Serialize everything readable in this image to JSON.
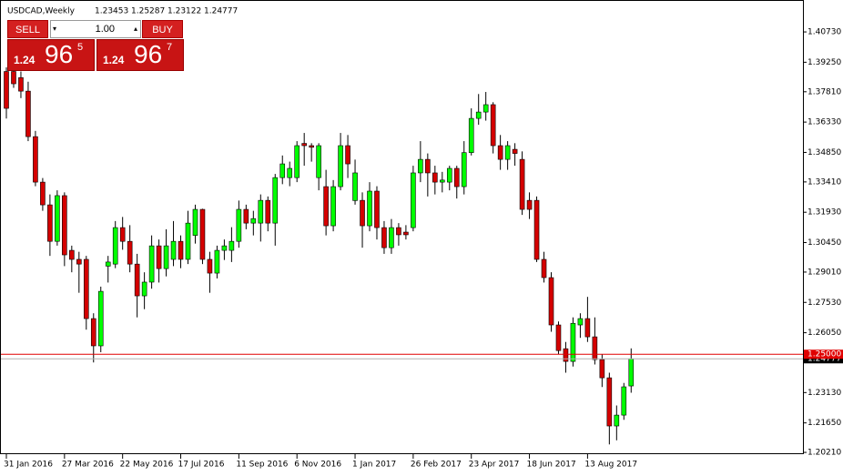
{
  "chart_data": {
    "type": "candlestick",
    "title": "USDCAD,Weekly",
    "categories": [
      "31 Jan 2016",
      null,
      null,
      null,
      null,
      null,
      null,
      null,
      "27 Mar 2016",
      null,
      null,
      null,
      null,
      null,
      null,
      null,
      "22 May 2016",
      null,
      null,
      null,
      null,
      null,
      null,
      null,
      "17 Jul 2016",
      null,
      null,
      null,
      null,
      null,
      null,
      null,
      "11 Sep 2016",
      null,
      null,
      null,
      null,
      null,
      null,
      null,
      "6 Nov 2016",
      null,
      null,
      null,
      null,
      null,
      null,
      null,
      "1 Jan 2017",
      null,
      null,
      null,
      null,
      null,
      null,
      null,
      "26 Feb 2017",
      null,
      null,
      null,
      null,
      null,
      null,
      null,
      "23 Apr 2017",
      null,
      null,
      null,
      null,
      null,
      null,
      null,
      "18 Jun 2017",
      null,
      null,
      null,
      null,
      null,
      null,
      null,
      "13 Aug 2017",
      null,
      null,
      null,
      null,
      null,
      null
    ],
    "open": [
      1.388,
      1.388,
      1.385,
      1.3784,
      1.3562,
      1.334,
      1.3229,
      1.3051,
      1.3274,
      1.3007,
      1.2963,
      1.2963,
      1.2674,
      1.2541,
      1.293,
      1.294,
      1.3118,
      1.3051,
      1.294,
      1.2785,
      1.2852,
      1.3029,
      1.2918,
      1.2963,
      1.3051,
      1.2963,
      1.308,
      1.3207,
      1.2963,
      1.2896,
      1.3007,
      1.3007,
      1.3051,
      1.3207,
      1.314,
      1.314,
      1.3251,
      1.314,
      1.3362,
      1.3362,
      1.3362,
      1.3529,
      1.3518,
      1.3362,
      1.3318,
      1.3127,
      1.3318,
      1.3518,
      1.325,
      1.3251,
      1.3127,
      1.3296,
      1.3118,
      1.302,
      1.3118,
      1.3096,
      1.3118,
      1.3385,
      1.3451,
      1.3385,
      1.334,
      1.334,
      1.3407,
      1.3318,
      1.3484,
      1.3651,
      1.3682,
      1.3718,
      1.3518,
      1.3451,
      1.35,
      1.3451,
      1.3251,
      1.3251,
      1.2963,
      1.2874,
      1.2643,
      1.2527,
      1.2465,
      1.2643,
      1.2674,
      1.2585,
      1.2474,
      1.2385,
      1.215,
      1.2203,
      1.23453
    ],
    "high": [
      1.39,
      1.392,
      1.388,
      1.383,
      1.359,
      1.336,
      1.328,
      1.33,
      1.329,
      1.303,
      1.3,
      1.298,
      1.27,
      1.283,
      1.298,
      1.315,
      1.317,
      1.313,
      1.299,
      1.29,
      1.308,
      1.306,
      1.311,
      1.315,
      1.308,
      1.32,
      1.323,
      1.321,
      1.3,
      1.303,
      1.306,
      1.312,
      1.325,
      1.323,
      1.32,
      1.328,
      1.327,
      1.338,
      1.347,
      1.344,
      1.354,
      1.358,
      1.353,
      1.353,
      1.34,
      1.335,
      1.358,
      1.357,
      1.345,
      1.329,
      1.334,
      1.332,
      1.315,
      1.316,
      1.314,
      1.313,
      1.342,
      1.354,
      1.348,
      1.342,
      1.339,
      1.342,
      1.342,
      1.354,
      1.37,
      1.377,
      1.378,
      1.373,
      1.357,
      1.354,
      1.353,
      1.349,
      1.329,
      1.327,
      1.3,
      1.29,
      1.266,
      1.256,
      1.268,
      1.27,
      1.278,
      1.268,
      1.25,
      1.241,
      1.225,
      1.236,
      1.25287
    ],
    "low": [
      1.365,
      1.38,
      1.375,
      1.354,
      1.332,
      1.32,
      1.298,
      1.303,
      1.293,
      1.29,
      1.28,
      1.262,
      1.246,
      1.251,
      1.285,
      1.292,
      1.301,
      1.29,
      1.268,
      1.272,
      1.282,
      1.285,
      1.288,
      1.293,
      1.292,
      1.294,
      1.304,
      1.294,
      1.28,
      1.287,
      1.296,
      1.295,
      1.302,
      1.311,
      1.308,
      1.305,
      1.31,
      1.303,
      1.333,
      1.332,
      1.334,
      1.342,
      1.344,
      1.33,
      1.308,
      1.31,
      1.33,
      1.336,
      1.323,
      1.302,
      1.31,
      1.306,
      1.299,
      1.299,
      1.303,
      1.306,
      1.31,
      1.334,
      1.327,
      1.328,
      1.329,
      1.33,
      1.326,
      1.328,
      1.347,
      1.362,
      1.364,
      1.348,
      1.34,
      1.34,
      1.342,
      1.318,
      1.316,
      1.295,
      1.285,
      1.261,
      1.25,
      1.241,
      1.244,
      1.258,
      1.256,
      1.245,
      1.234,
      1.206,
      1.208,
      1.218,
      1.23122
    ],
    "close": [
      1.37,
      1.382,
      1.3784,
      1.3562,
      1.334,
      1.3229,
      1.3051,
      1.3274,
      1.2985,
      1.2963,
      1.294,
      1.2674,
      1.2541,
      1.2807,
      1.295,
      1.3118,
      1.3051,
      1.294,
      1.2785,
      1.2852,
      1.3029,
      1.2918,
      1.3029,
      1.3051,
      1.2963,
      1.314,
      1.3207,
      1.2963,
      1.2896,
      1.3007,
      1.3029,
      1.3051,
      1.3207,
      1.314,
      1.3162,
      1.3251,
      1.314,
      1.3362,
      1.3429,
      1.3407,
      1.3518,
      1.3518,
      1.351,
      1.3518,
      1.3127,
      1.3318,
      1.3518,
      1.3429,
      1.3385,
      1.3127,
      1.3296,
      1.3118,
      1.302,
      1.3118,
      1.3083,
      1.3083,
      1.3385,
      1.3451,
      1.3385,
      1.334,
      1.335,
      1.3407,
      1.3318,
      1.3484,
      1.3651,
      1.3682,
      1.3718,
      1.3518,
      1.3451,
      1.3518,
      1.348,
      1.3207,
      1.3207,
      1.2963,
      1.2874,
      1.2643,
      1.2518,
      1.2465,
      1.2651,
      1.2674,
      1.2585,
      1.2474,
      1.2385,
      1.215,
      1.2203,
      1.2341,
      1.24777
    ],
    "up_color": "#00ff00",
    "down_color": "#d40000",
    "wick_color": "#000000",
    "ylim": [
      1.2008,
      1.4211
    ],
    "yticks": [
      {
        "value": 1.4073,
        "label": "1.40730"
      },
      {
        "value": 1.3925,
        "label": "1.39250"
      },
      {
        "value": 1.3781,
        "label": "1.37810"
      },
      {
        "value": 1.3633,
        "label": "1.36330"
      },
      {
        "value": 1.3485,
        "label": "1.34850"
      },
      {
        "value": 1.3341,
        "label": "1.33410"
      },
      {
        "value": 1.3193,
        "label": "1.31930"
      },
      {
        "value": 1.3045,
        "label": "1.30450"
      },
      {
        "value": 1.2901,
        "label": "1.29010"
      },
      {
        "value": 1.2753,
        "label": "1.27530"
      },
      {
        "value": 1.2605,
        "label": "1.26050"
      },
      {
        "value": 1.2313,
        "label": "1.23130"
      },
      {
        "value": 1.2165,
        "label": "1.21650"
      },
      {
        "value": 1.2021,
        "label": "1.20210"
      }
    ],
    "hline": {
      "value": 1.25,
      "label": "1.25000",
      "color": "#e00000"
    },
    "bid_line_color": "#b0b0b0"
  },
  "trade_panel": {
    "sell": "SELL",
    "buy": "BUY",
    "lots": "1.00",
    "bid": {
      "a": "1.24",
      "b": "96",
      "c": "5"
    },
    "ask": {
      "a": "1.24",
      "b": "96",
      "c": "7"
    }
  }
}
